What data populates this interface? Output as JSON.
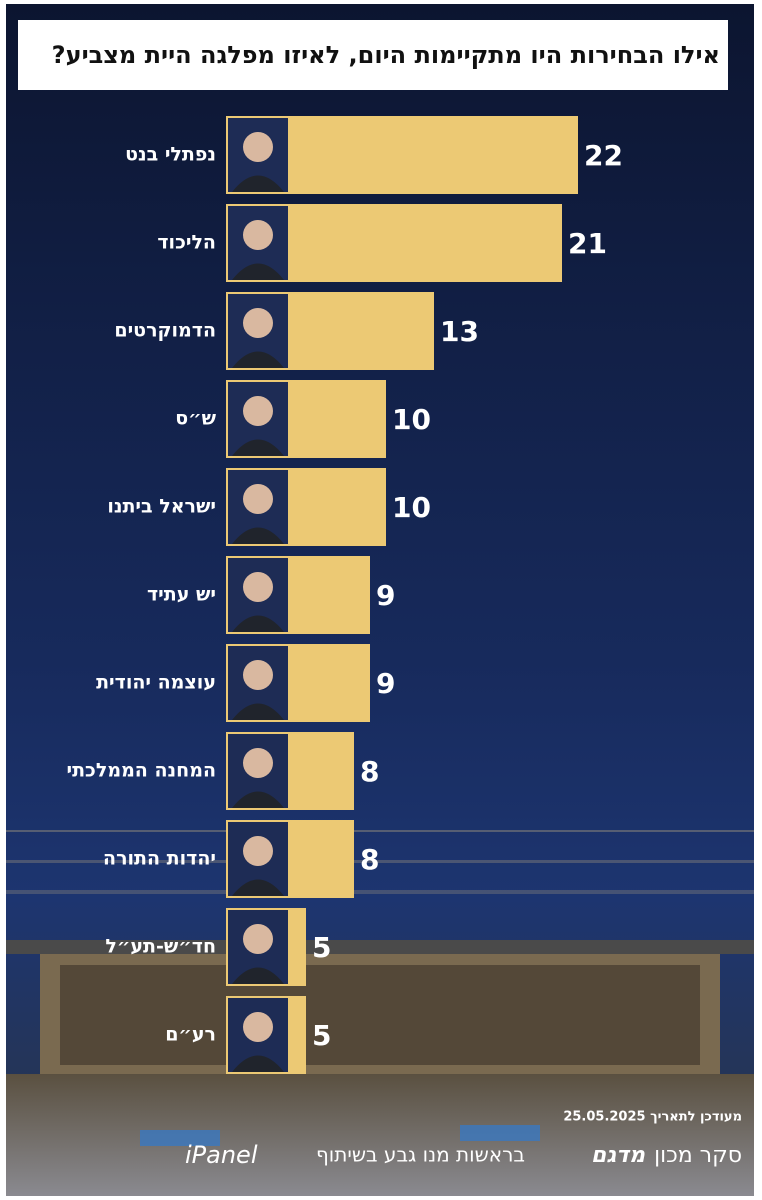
{
  "chart_data": {
    "type": "bar",
    "orientation": "horizontal",
    "title": "אילו הבחירות היו מתקיימות היום, לאיזו מפלגה היית מצביע?",
    "categories": [
      "נפתלי בנט",
      "הליכוד",
      "הדמוקרטים",
      "ש״ס",
      "ישראל ביתנו",
      "יש עתיד",
      "עוצמה יהודית",
      "המחנה הממלכתי",
      "יהדות התורה",
      "חד״ש-תע״ל",
      "רע״ם"
    ],
    "values": [
      22,
      21,
      13,
      10,
      10,
      9,
      9,
      8,
      8,
      5,
      5
    ],
    "color": "#ecc974",
    "footer": {
      "updated": "מעודכן לתאריך 25.05.2025",
      "credit_prefix": "סקר מכון",
      "institute": "מדגם",
      "credit_suffix": "בראשות מנו גבע בשיתוף",
      "partner": "iPanel"
    }
  }
}
